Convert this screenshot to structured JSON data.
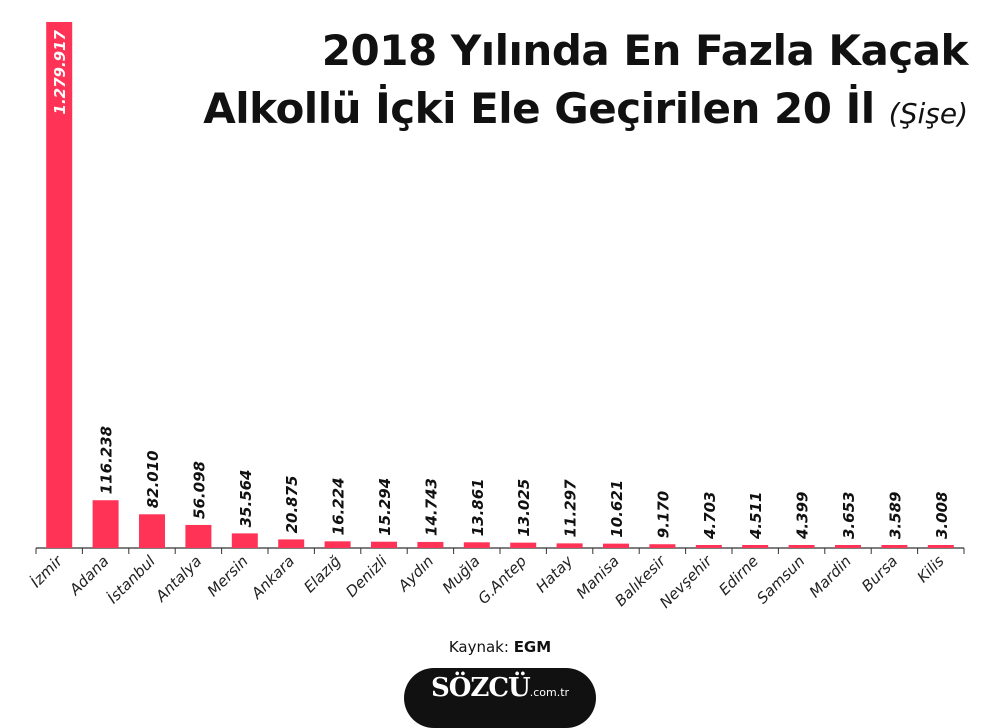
{
  "chart_data": {
    "type": "bar",
    "title_line1": "2018 Yılında En Fazla Kaçak",
    "title_line2": "Alkollü İçki Ele Geçirilen 20 İl",
    "unit": "(Şişe)",
    "categories": [
      "İzmir",
      "Adana",
      "İstanbul",
      "Antalya",
      "Mersin",
      "Ankara",
      "Elazığ",
      "Denizli",
      "Aydın",
      "Muğla",
      "G.Antep",
      "Hatay",
      "Manisa",
      "Balıkesir",
      "Nevşehir",
      "Edirne",
      "Samsun",
      "Mardin",
      "Bursa",
      "Kilis"
    ],
    "values": [
      1279917,
      116238,
      82010,
      56098,
      35564,
      20875,
      16224,
      15294,
      14743,
      13861,
      13025,
      11297,
      10621,
      9170,
      4703,
      4511,
      4399,
      3653,
      3589,
      3008
    ],
    "value_labels": [
      "1.279.917",
      "116.238",
      "82.010",
      "56.098",
      "35.564",
      "20.875",
      "16.224",
      "15.294",
      "14.743",
      "13.861",
      "13.025",
      "11.297",
      "10.621",
      "9.170",
      "4.703",
      "4.511",
      "4.399",
      "3.653",
      "3.589",
      "3.008"
    ],
    "ylim": [
      0,
      1279917
    ],
    "grid": false,
    "bar_color": "#FF3355",
    "axis_color": "#333333"
  },
  "source": {
    "label": "Kaynak:",
    "value": "EGM"
  },
  "brand": {
    "name": "SÖZCÜ",
    "domain": ".com.tr"
  }
}
